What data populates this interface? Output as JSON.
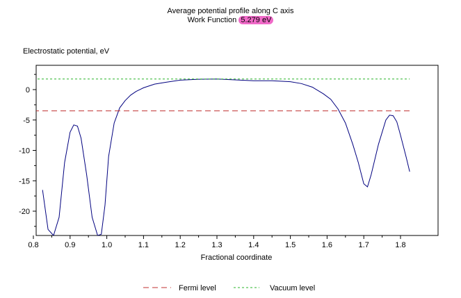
{
  "chart_data": {
    "type": "line",
    "title": "Average potential profile along C axis",
    "subtitle_prefix": "Work Function",
    "subtitle_value": "5.279 eV",
    "ylabel": "Electrostatic potential, eV",
    "xlabel": "Fractional coordinate",
    "xlim": [
      0.8,
      1.85
    ],
    "ylim": [
      -24,
      3
    ],
    "xticks": [
      "0.8",
      "0.9",
      "1.0",
      "1.1",
      "1.2",
      "1.3",
      "1.4",
      "1.5",
      "1.6",
      "1.7",
      "1.8"
    ],
    "yticks": [
      "0",
      "-5",
      "-10",
      "-15",
      "-20"
    ],
    "grid": false,
    "legend_position": "bottom",
    "series": [
      {
        "name": "",
        "color": "#00007f",
        "style": "solid",
        "x": [
          0.825,
          0.84,
          0.855,
          0.87,
          0.885,
          0.9,
          0.91,
          0.92,
          0.93,
          0.945,
          0.96,
          0.975,
          0.985,
          0.995,
          1.005,
          1.02,
          1.035,
          1.05,
          1.065,
          1.08,
          1.1,
          1.13,
          1.16,
          1.2,
          1.25,
          1.3,
          1.35,
          1.4,
          1.45,
          1.5,
          1.53,
          1.56,
          1.59,
          1.61,
          1.63,
          1.65,
          1.67,
          1.685,
          1.7,
          1.71,
          1.72,
          1.74,
          1.76,
          1.77,
          1.78,
          1.79,
          1.8,
          1.815,
          1.825
        ],
        "y": [
          -16.5,
          -23.0,
          -24.0,
          -21.0,
          -12.0,
          -7.0,
          -5.8,
          -6.0,
          -8.0,
          -14.0,
          -21.0,
          -24.0,
          -23.8,
          -19.0,
          -11.0,
          -5.5,
          -3.0,
          -1.8,
          -0.9,
          -0.3,
          0.3,
          0.9,
          1.2,
          1.55,
          1.7,
          1.75,
          1.6,
          1.45,
          1.45,
          1.3,
          1.0,
          0.4,
          -0.7,
          -1.6,
          -3.2,
          -5.5,
          -9.0,
          -12.0,
          -15.5,
          -16.0,
          -14.0,
          -9.0,
          -5.0,
          -4.2,
          -4.3,
          -5.3,
          -7.5,
          -11.0,
          -13.5
        ]
      },
      {
        "name": "Fermi level",
        "color": "#c03030",
        "style": "dashed",
        "x": [
          0.8,
          1.825
        ],
        "y": [
          -3.5,
          -3.5
        ]
      },
      {
        "name": "Vacuum level",
        "color": "#28b428",
        "style": "dashed",
        "x": [
          0.8,
          1.825
        ],
        "y": [
          1.75,
          1.75
        ]
      }
    ]
  }
}
